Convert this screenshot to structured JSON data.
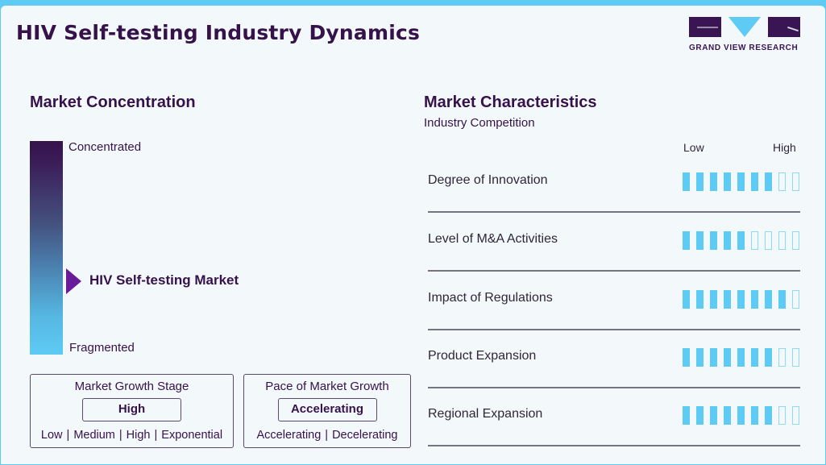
{
  "header": {
    "title": "HIV Self-testing Industry Dynamics",
    "logo_text": "GRAND VIEW RESEARCH"
  },
  "concentration": {
    "title": "Market Concentration",
    "top_label": "Concentrated",
    "bottom_label": "Fragmented",
    "marker_label": "HIV Self-testing Market",
    "marker_position_pct": 65
  },
  "growth_stage": {
    "title": "Market Growth Stage",
    "value": "High",
    "options": [
      "Low",
      "Medium",
      "High",
      "Exponential"
    ]
  },
  "growth_pace": {
    "title": "Pace of Market Growth",
    "value": "Accelerating",
    "options": [
      "Accelerating",
      "Decelerating"
    ]
  },
  "characteristics": {
    "title": "Market Characteristics",
    "subtitle": "Industry Competition",
    "low_label": "Low",
    "high_label": "High",
    "max_score": 9,
    "rows": [
      {
        "label": "Degree of Innovation",
        "score": 7
      },
      {
        "label": "Level of M&A Activities",
        "score": 5
      },
      {
        "label": "Impact of Regulations",
        "score": 8
      },
      {
        "label": "Product Expansion",
        "score": 7
      },
      {
        "label": "Regional Expansion",
        "score": 7
      }
    ]
  },
  "colors": {
    "brand_dark": "#35124a",
    "accent_blue": "#5ecbf5",
    "marker_purple": "#6a1b9a"
  }
}
